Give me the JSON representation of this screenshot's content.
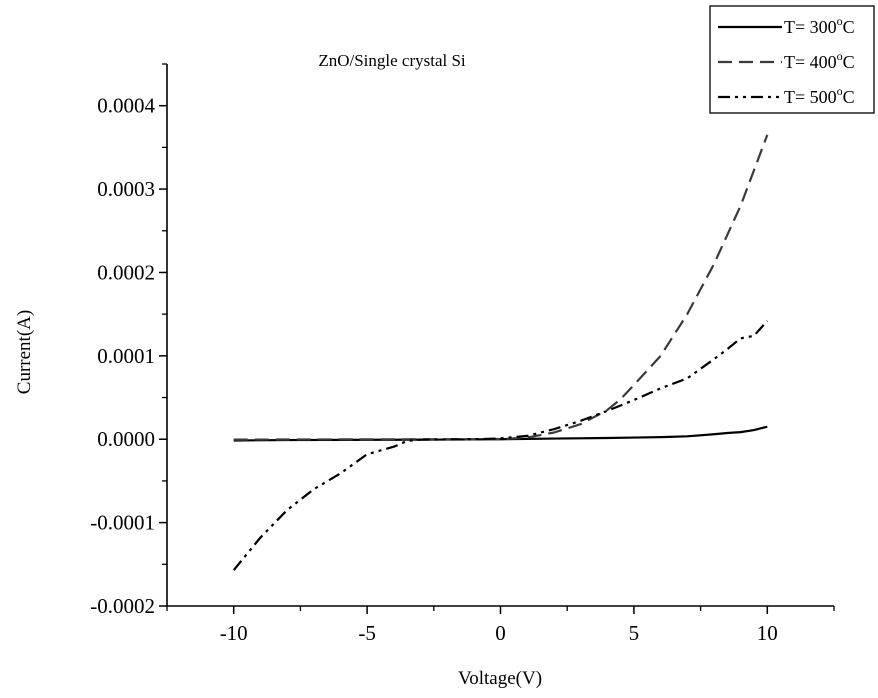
{
  "chart_data": {
    "type": "line",
    "title": "ZnO/Single crystal Si",
    "xlabel": "Voltage(V)",
    "ylabel": "Current(A)",
    "xlim": [
      -12.5,
      12.5
    ],
    "ylim": [
      -0.0002,
      0.00045
    ],
    "xticks": [
      -10,
      -5,
      0,
      5,
      10
    ],
    "xtick_labels": [
      "-10",
      "-5",
      "0",
      "5",
      "10"
    ],
    "yticks": [
      -0.0002,
      -0.0001,
      0,
      0.0001,
      0.0002,
      0.0003,
      0.0004
    ],
    "ytick_labels": [
      "-0.0002",
      "-0.0001",
      "0.0000",
      "0.0001",
      "0.0002",
      "0.0003",
      "0.0004"
    ],
    "grid": false,
    "legend_position": "top-right",
    "series": [
      {
        "name": "T= 300°C",
        "label_prefix": "T= 300",
        "label_sup": "o",
        "label_suffix": "C",
        "dash": "solid",
        "color": "#000000",
        "x": [
          -10,
          -8,
          -6,
          -4,
          -2,
          0,
          2,
          4,
          5,
          6,
          7,
          8,
          8.5,
          9,
          9.5,
          10
        ],
        "y": [
          -1.5e-06,
          -1e-06,
          -8e-07,
          -6e-07,
          -4e-07,
          0,
          8e-07,
          1.5e-06,
          2e-06,
          2.5e-06,
          3.5e-06,
          6e-06,
          7.5e-06,
          8.5e-06,
          1.1e-05,
          1.5e-05
        ]
      },
      {
        "name": "T= 400°C",
        "label_prefix": "T= 400",
        "label_sup": "o",
        "label_suffix": "C",
        "dash": "dashed",
        "color": "#3a3a3a",
        "x": [
          -10,
          -8,
          -6,
          -4,
          -2,
          0,
          1,
          2,
          3,
          4,
          4.5,
          5,
          6,
          7,
          8,
          9,
          10
        ],
        "y": [
          -5e-07,
          -3e-07,
          -2e-07,
          -1e-07,
          0,
          0,
          2e-06,
          8e-06,
          1.8e-05,
          3.5e-05,
          4.8e-05,
          6.5e-05,
          0.0001,
          0.00015,
          0.00021,
          0.00028,
          0.000365
        ]
      },
      {
        "name": "T= 500°C",
        "label_prefix": "T= 500",
        "label_sup": "o",
        "label_suffix": "C",
        "dash": "dash-dot-dot",
        "color": "#000000",
        "x": [
          -10,
          -9,
          -8,
          -7,
          -6,
          -5,
          -4,
          -3.5,
          -3,
          -2,
          -1,
          0,
          1,
          2,
          3,
          4,
          5,
          6,
          7,
          8,
          8.5,
          9,
          9.5,
          10
        ],
        "y": [
          -0.000157,
          -0.000118,
          -8.5e-05,
          -6e-05,
          -4.1e-05,
          -1.8e-05,
          -9e-06,
          -2e-06,
          -5e-07,
          -2e-07,
          0,
          1e-06,
          4e-06,
          1.2e-05,
          2.2e-05,
          3.4e-05,
          4.7e-05,
          6.1e-05,
          7.3e-05,
          9.6e-05,
          0.000108,
          0.000121,
          0.000124,
          0.000142
        ]
      }
    ]
  }
}
